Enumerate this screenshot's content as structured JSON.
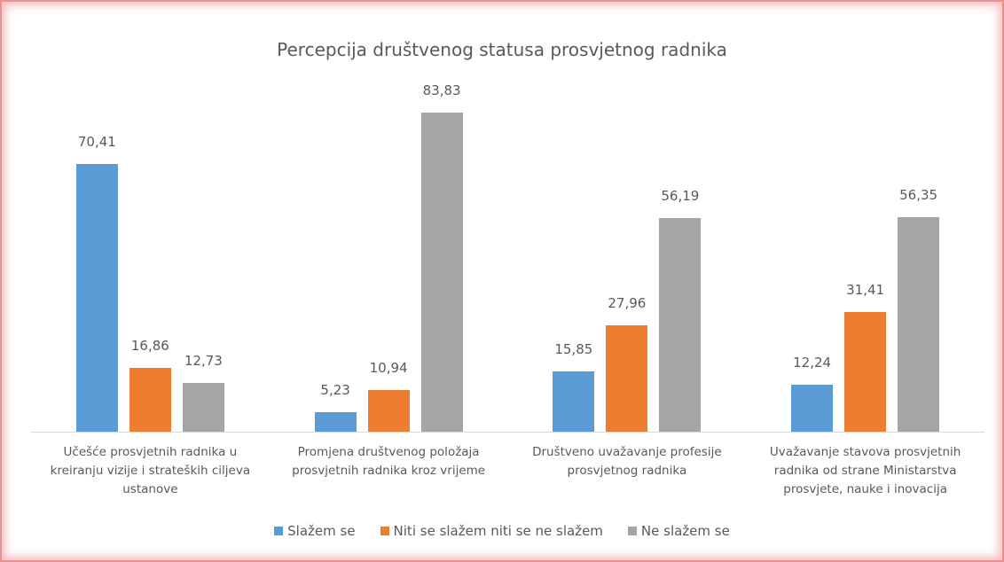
{
  "chart_data": {
    "type": "bar",
    "title": "Percepcija društvenog statusa prosvjetnog radnika",
    "categories": [
      "Učešće prosvjetnih radnika u kreiranju vizije i strateških ciljeva ustanove",
      "Promjena društvenog položaja prosvjetnih radnika kroz vrijeme",
      "Društveno uvažavanje profesije prosvjetnog radnika",
      "Uvažavanje stavova prosvjetnih radnika od strane Ministarstva prosvjete, nauke i inovacija"
    ],
    "series": [
      {
        "name": "Slažem se",
        "color": "#5b9bd5",
        "values": [
          70.41,
          5.23,
          15.85,
          12.24
        ],
        "value_labels": [
          "70,41",
          "5,23",
          "15,85",
          "12,24"
        ]
      },
      {
        "name": "Niti se slažem niti se ne slažem",
        "color": "#ed7d31",
        "values": [
          16.86,
          10.94,
          27.96,
          31.41
        ],
        "value_labels": [
          "16,86",
          "10,94",
          "27,96",
          "31,41"
        ]
      },
      {
        "name": "Ne slažem se",
        "color": "#a5a5a5",
        "values": [
          12.73,
          83.83,
          56.19,
          56.35
        ],
        "value_labels": [
          "12,73",
          "83,83",
          "56,19",
          "56,35"
        ]
      }
    ],
    "legend": "bottom"
  }
}
